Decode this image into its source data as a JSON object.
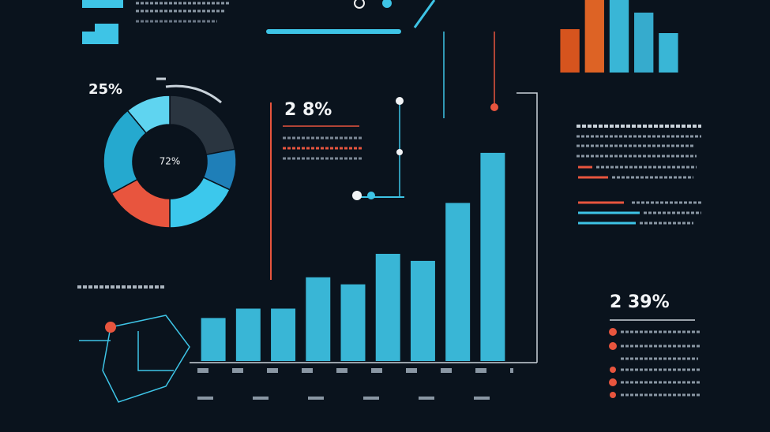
{
  "chart_data": [
    {
      "type": "bar",
      "values": [
        55,
        67,
        67,
        107,
        98,
        137,
        128,
        202,
        266
      ],
      "color": "#3ec4e6",
      "ylim": [
        0,
        280
      ]
    },
    {
      "type": "pie",
      "title": "72%",
      "values": [
        22,
        10,
        18,
        17,
        22,
        11
      ],
      "colors": [
        "#2a3540",
        "#1f7fb8",
        "#3cc8ec",
        "#e8553e",
        "#25a9cf",
        "#5fd4f0"
      ]
    },
    {
      "type": "bar",
      "values": [
        55,
        92,
        92,
        76,
        50
      ],
      "colors": [
        "#e85a1e",
        "#f06a26",
        "#3ec4e6",
        "#3bb8dc",
        "#3ec4e6"
      ],
      "ylim": [
        0,
        92
      ]
    }
  ],
  "labels": {
    "donut_caption": "25%",
    "center_stat": "2 8%",
    "right_stat": "2 39%"
  }
}
